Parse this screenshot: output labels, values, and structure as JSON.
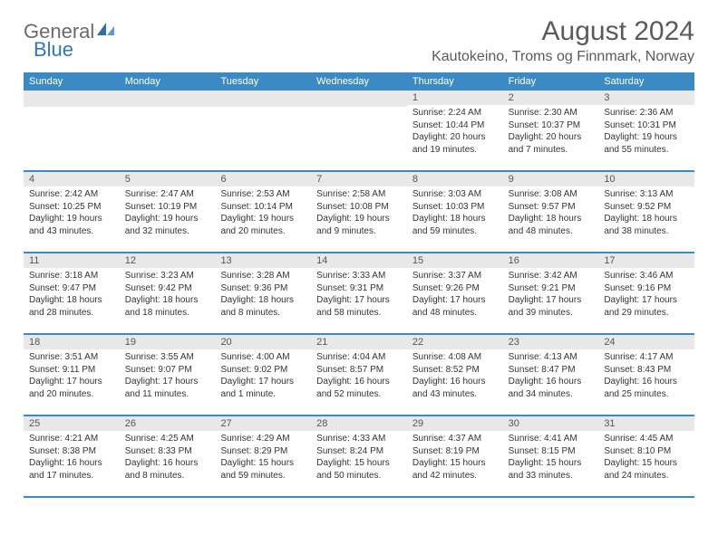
{
  "logo": {
    "part1": "General",
    "part2": "Blue"
  },
  "title": "August 2024",
  "location": "Kautokeino, Troms og Finnmark, Norway",
  "weekdays": [
    "Sunday",
    "Monday",
    "Tuesday",
    "Wednesday",
    "Thursday",
    "Friday",
    "Saturday"
  ],
  "colors": {
    "header_bg": "#3b8ac4",
    "header_text": "#ffffff",
    "daynum_bg": "#e8e8e8",
    "border": "#3b8ac4",
    "logo_gray": "#6a6a6a",
    "logo_blue": "#3178b9",
    "title_color": "#5a5a5a"
  },
  "weeks": [
    [
      {
        "day": "",
        "sunrise": "",
        "sunset": "",
        "daylight": ""
      },
      {
        "day": "",
        "sunrise": "",
        "sunset": "",
        "daylight": ""
      },
      {
        "day": "",
        "sunrise": "",
        "sunset": "",
        "daylight": ""
      },
      {
        "day": "",
        "sunrise": "",
        "sunset": "",
        "daylight": ""
      },
      {
        "day": "1",
        "sunrise": "Sunrise: 2:24 AM",
        "sunset": "Sunset: 10:44 PM",
        "daylight": "Daylight: 20 hours and 19 minutes."
      },
      {
        "day": "2",
        "sunrise": "Sunrise: 2:30 AM",
        "sunset": "Sunset: 10:37 PM",
        "daylight": "Daylight: 20 hours and 7 minutes."
      },
      {
        "day": "3",
        "sunrise": "Sunrise: 2:36 AM",
        "sunset": "Sunset: 10:31 PM",
        "daylight": "Daylight: 19 hours and 55 minutes."
      }
    ],
    [
      {
        "day": "4",
        "sunrise": "Sunrise: 2:42 AM",
        "sunset": "Sunset: 10:25 PM",
        "daylight": "Daylight: 19 hours and 43 minutes."
      },
      {
        "day": "5",
        "sunrise": "Sunrise: 2:47 AM",
        "sunset": "Sunset: 10:19 PM",
        "daylight": "Daylight: 19 hours and 32 minutes."
      },
      {
        "day": "6",
        "sunrise": "Sunrise: 2:53 AM",
        "sunset": "Sunset: 10:14 PM",
        "daylight": "Daylight: 19 hours and 20 minutes."
      },
      {
        "day": "7",
        "sunrise": "Sunrise: 2:58 AM",
        "sunset": "Sunset: 10:08 PM",
        "daylight": "Daylight: 19 hours and 9 minutes."
      },
      {
        "day": "8",
        "sunrise": "Sunrise: 3:03 AM",
        "sunset": "Sunset: 10:03 PM",
        "daylight": "Daylight: 18 hours and 59 minutes."
      },
      {
        "day": "9",
        "sunrise": "Sunrise: 3:08 AM",
        "sunset": "Sunset: 9:57 PM",
        "daylight": "Daylight: 18 hours and 48 minutes."
      },
      {
        "day": "10",
        "sunrise": "Sunrise: 3:13 AM",
        "sunset": "Sunset: 9:52 PM",
        "daylight": "Daylight: 18 hours and 38 minutes."
      }
    ],
    [
      {
        "day": "11",
        "sunrise": "Sunrise: 3:18 AM",
        "sunset": "Sunset: 9:47 PM",
        "daylight": "Daylight: 18 hours and 28 minutes."
      },
      {
        "day": "12",
        "sunrise": "Sunrise: 3:23 AM",
        "sunset": "Sunset: 9:42 PM",
        "daylight": "Daylight: 18 hours and 18 minutes."
      },
      {
        "day": "13",
        "sunrise": "Sunrise: 3:28 AM",
        "sunset": "Sunset: 9:36 PM",
        "daylight": "Daylight: 18 hours and 8 minutes."
      },
      {
        "day": "14",
        "sunrise": "Sunrise: 3:33 AM",
        "sunset": "Sunset: 9:31 PM",
        "daylight": "Daylight: 17 hours and 58 minutes."
      },
      {
        "day": "15",
        "sunrise": "Sunrise: 3:37 AM",
        "sunset": "Sunset: 9:26 PM",
        "daylight": "Daylight: 17 hours and 48 minutes."
      },
      {
        "day": "16",
        "sunrise": "Sunrise: 3:42 AM",
        "sunset": "Sunset: 9:21 PM",
        "daylight": "Daylight: 17 hours and 39 minutes."
      },
      {
        "day": "17",
        "sunrise": "Sunrise: 3:46 AM",
        "sunset": "Sunset: 9:16 PM",
        "daylight": "Daylight: 17 hours and 29 minutes."
      }
    ],
    [
      {
        "day": "18",
        "sunrise": "Sunrise: 3:51 AM",
        "sunset": "Sunset: 9:11 PM",
        "daylight": "Daylight: 17 hours and 20 minutes."
      },
      {
        "day": "19",
        "sunrise": "Sunrise: 3:55 AM",
        "sunset": "Sunset: 9:07 PM",
        "daylight": "Daylight: 17 hours and 11 minutes."
      },
      {
        "day": "20",
        "sunrise": "Sunrise: 4:00 AM",
        "sunset": "Sunset: 9:02 PM",
        "daylight": "Daylight: 17 hours and 1 minute."
      },
      {
        "day": "21",
        "sunrise": "Sunrise: 4:04 AM",
        "sunset": "Sunset: 8:57 PM",
        "daylight": "Daylight: 16 hours and 52 minutes."
      },
      {
        "day": "22",
        "sunrise": "Sunrise: 4:08 AM",
        "sunset": "Sunset: 8:52 PM",
        "daylight": "Daylight: 16 hours and 43 minutes."
      },
      {
        "day": "23",
        "sunrise": "Sunrise: 4:13 AM",
        "sunset": "Sunset: 8:47 PM",
        "daylight": "Daylight: 16 hours and 34 minutes."
      },
      {
        "day": "24",
        "sunrise": "Sunrise: 4:17 AM",
        "sunset": "Sunset: 8:43 PM",
        "daylight": "Daylight: 16 hours and 25 minutes."
      }
    ],
    [
      {
        "day": "25",
        "sunrise": "Sunrise: 4:21 AM",
        "sunset": "Sunset: 8:38 PM",
        "daylight": "Daylight: 16 hours and 17 minutes."
      },
      {
        "day": "26",
        "sunrise": "Sunrise: 4:25 AM",
        "sunset": "Sunset: 8:33 PM",
        "daylight": "Daylight: 16 hours and 8 minutes."
      },
      {
        "day": "27",
        "sunrise": "Sunrise: 4:29 AM",
        "sunset": "Sunset: 8:29 PM",
        "daylight": "Daylight: 15 hours and 59 minutes."
      },
      {
        "day": "28",
        "sunrise": "Sunrise: 4:33 AM",
        "sunset": "Sunset: 8:24 PM",
        "daylight": "Daylight: 15 hours and 50 minutes."
      },
      {
        "day": "29",
        "sunrise": "Sunrise: 4:37 AM",
        "sunset": "Sunset: 8:19 PM",
        "daylight": "Daylight: 15 hours and 42 minutes."
      },
      {
        "day": "30",
        "sunrise": "Sunrise: 4:41 AM",
        "sunset": "Sunset: 8:15 PM",
        "daylight": "Daylight: 15 hours and 33 minutes."
      },
      {
        "day": "31",
        "sunrise": "Sunrise: 4:45 AM",
        "sunset": "Sunset: 8:10 PM",
        "daylight": "Daylight: 15 hours and 24 minutes."
      }
    ]
  ]
}
